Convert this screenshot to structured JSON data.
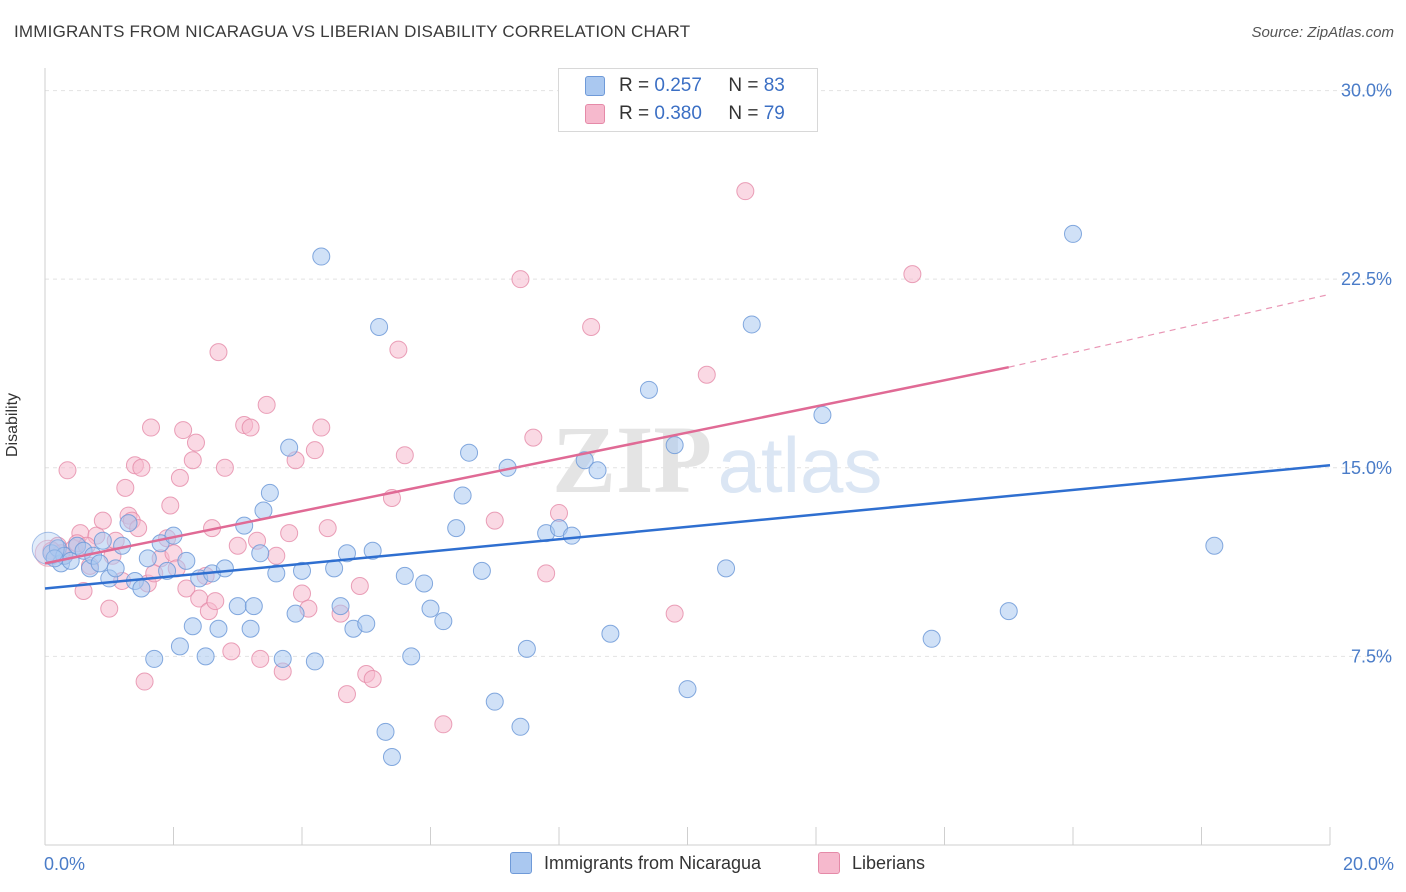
{
  "header": {
    "title": "IMMIGRANTS FROM NICARAGUA VS LIBERIAN DISABILITY CORRELATION CHART",
    "source": "Source: ZipAtlas.com"
  },
  "watermark": {
    "zip": "ZIP",
    "atlas": "atlas"
  },
  "legend": {
    "rows": [
      {
        "r_label": "R =",
        "r_value": "0.257",
        "n_label": "N =",
        "n_value": "83",
        "color": "#aac8f0"
      },
      {
        "r_label": "R =",
        "r_value": "0.380",
        "n_label": "N =",
        "n_value": "79",
        "color": "#f6b9cd"
      }
    ]
  },
  "bottom_legend": {
    "items": [
      {
        "label": "Immigrants from Nicaragua",
        "color": "#aac8f0"
      },
      {
        "label": "Liberians",
        "color": "#f6b9cd"
      }
    ]
  },
  "chart_data": {
    "type": "scatter",
    "title": "IMMIGRANTS FROM NICARAGUA VS LIBERIAN DISABILITY CORRELATION CHART",
    "xlabel": "",
    "ylabel": "Disability",
    "xlim": [
      0,
      20
    ],
    "ylim": [
      0,
      30.5
    ],
    "x_tick_labels": [
      "0.0%",
      "20.0%"
    ],
    "y_ticks": [
      7.5,
      15.0,
      22.5,
      30.0
    ],
    "y_tick_labels": [
      "7.5%",
      "15.0%",
      "22.5%",
      "30.0%"
    ],
    "grid": true,
    "legend_position": "top-center",
    "colors": {
      "blue_fill": "#aac8f0",
      "blue_stroke": "#6f9ad8",
      "blue_line": "#2f6fd0",
      "pink_fill": "#f6b9cd",
      "pink_stroke": "#e58aa8",
      "pink_line": "#e06a95",
      "tick_label": "#4a7cc8"
    },
    "series": [
      {
        "name": "Immigrants from Nicaragua",
        "trend": {
          "x0": 0,
          "y0": 10.2,
          "x1": 20,
          "y1": 15.1
        },
        "points": [
          [
            0.1,
            11.6
          ],
          [
            0.2,
            11.8
          ],
          [
            0.25,
            11.2
          ],
          [
            0.3,
            11.5
          ],
          [
            0.4,
            11.3
          ],
          [
            0.5,
            11.9
          ],
          [
            0.6,
            11.7
          ],
          [
            0.7,
            11.0
          ],
          [
            0.75,
            11.5
          ],
          [
            0.85,
            11.2
          ],
          [
            0.9,
            12.1
          ],
          [
            1.0,
            10.6
          ],
          [
            1.1,
            11.0
          ],
          [
            1.2,
            11.9
          ],
          [
            1.4,
            10.5
          ],
          [
            1.5,
            10.2
          ],
          [
            1.6,
            11.4
          ],
          [
            1.7,
            7.4
          ],
          [
            1.8,
            12.0
          ],
          [
            1.9,
            10.9
          ],
          [
            2.0,
            12.3
          ],
          [
            2.2,
            11.3
          ],
          [
            2.3,
            8.7
          ],
          [
            2.4,
            10.6
          ],
          [
            2.5,
            7.5
          ],
          [
            2.6,
            10.8
          ],
          [
            2.7,
            8.6
          ],
          [
            2.8,
            11.0
          ],
          [
            3.0,
            9.5
          ],
          [
            3.1,
            12.7
          ],
          [
            3.2,
            8.6
          ],
          [
            3.35,
            11.6
          ],
          [
            3.4,
            13.3
          ],
          [
            3.5,
            14.0
          ],
          [
            3.6,
            10.8
          ],
          [
            3.7,
            7.4
          ],
          [
            3.8,
            15.8
          ],
          [
            3.9,
            9.2
          ],
          [
            4.0,
            10.9
          ],
          [
            4.2,
            7.3
          ],
          [
            4.3,
            23.4
          ],
          [
            4.5,
            11.0
          ],
          [
            4.6,
            9.5
          ],
          [
            4.7,
            11.6
          ],
          [
            4.8,
            8.6
          ],
          [
            5.0,
            8.8
          ],
          [
            5.1,
            11.7
          ],
          [
            5.2,
            20.6
          ],
          [
            5.3,
            4.5
          ],
          [
            5.4,
            3.5
          ],
          [
            5.6,
            10.7
          ],
          [
            5.7,
            7.5
          ],
          [
            5.9,
            10.4
          ],
          [
            6.0,
            9.4
          ],
          [
            6.2,
            8.9
          ],
          [
            6.4,
            12.6
          ],
          [
            6.5,
            13.9
          ],
          [
            6.6,
            15.6
          ],
          [
            6.8,
            10.9
          ],
          [
            7.0,
            5.7
          ],
          [
            7.2,
            15.0
          ],
          [
            7.4,
            4.7
          ],
          [
            7.5,
            7.8
          ],
          [
            7.8,
            12.4
          ],
          [
            8.0,
            12.6
          ],
          [
            8.2,
            12.3
          ],
          [
            8.4,
            15.3
          ],
          [
            8.6,
            14.9
          ],
          [
            8.8,
            8.4
          ],
          [
            9.4,
            18.1
          ],
          [
            9.8,
            15.9
          ],
          [
            10.0,
            6.2
          ],
          [
            10.6,
            11.0
          ],
          [
            11.0,
            20.7
          ],
          [
            12.1,
            17.1
          ],
          [
            13.8,
            8.2
          ],
          [
            15.0,
            9.3
          ],
          [
            16.0,
            24.3
          ],
          [
            18.2,
            11.9
          ],
          [
            1.3,
            12.8
          ],
          [
            0.15,
            11.4
          ],
          [
            2.1,
            7.9
          ],
          [
            3.25,
            9.5
          ]
        ]
      },
      {
        "name": "Liberians",
        "trend": {
          "x0": 0,
          "y0": 11.2,
          "x1": 15.0,
          "y1": 19.0,
          "dash_to_x": 20,
          "dash_to_y": 21.9
        },
        "points": [
          [
            0.1,
            11.7
          ],
          [
            0.2,
            11.9
          ],
          [
            0.3,
            11.5
          ],
          [
            0.35,
            14.9
          ],
          [
            0.45,
            11.8
          ],
          [
            0.55,
            12.4
          ],
          [
            0.6,
            10.1
          ],
          [
            0.7,
            11.1
          ],
          [
            0.8,
            12.3
          ],
          [
            0.9,
            12.9
          ],
          [
            1.0,
            9.4
          ],
          [
            1.05,
            11.5
          ],
          [
            1.1,
            12.1
          ],
          [
            1.2,
            10.5
          ],
          [
            1.25,
            14.2
          ],
          [
            1.3,
            13.1
          ],
          [
            1.35,
            12.9
          ],
          [
            1.4,
            15.1
          ],
          [
            1.5,
            15.0
          ],
          [
            1.55,
            6.5
          ],
          [
            1.6,
            10.4
          ],
          [
            1.65,
            16.6
          ],
          [
            1.7,
            10.8
          ],
          [
            1.8,
            11.4
          ],
          [
            1.9,
            12.2
          ],
          [
            2.0,
            11.6
          ],
          [
            2.05,
            11.0
          ],
          [
            2.1,
            14.6
          ],
          [
            2.15,
            16.5
          ],
          [
            2.2,
            10.2
          ],
          [
            2.3,
            15.3
          ],
          [
            2.35,
            16.0
          ],
          [
            2.4,
            9.8
          ],
          [
            2.5,
            10.7
          ],
          [
            2.55,
            9.3
          ],
          [
            2.6,
            12.6
          ],
          [
            2.7,
            19.6
          ],
          [
            2.8,
            15.0
          ],
          [
            2.9,
            7.7
          ],
          [
            3.0,
            11.9
          ],
          [
            3.1,
            16.7
          ],
          [
            3.2,
            16.6
          ],
          [
            3.3,
            12.1
          ],
          [
            3.45,
            17.5
          ],
          [
            3.6,
            11.5
          ],
          [
            3.7,
            6.9
          ],
          [
            3.8,
            12.4
          ],
          [
            3.9,
            15.3
          ],
          [
            4.0,
            10.0
          ],
          [
            4.1,
            9.4
          ],
          [
            4.2,
            15.7
          ],
          [
            4.3,
            16.6
          ],
          [
            4.4,
            12.6
          ],
          [
            4.6,
            9.2
          ],
          [
            4.7,
            6.0
          ],
          [
            4.9,
            10.3
          ],
          [
            5.0,
            6.8
          ],
          [
            5.1,
            6.6
          ],
          [
            5.4,
            13.8
          ],
          [
            5.5,
            19.7
          ],
          [
            5.6,
            15.5
          ],
          [
            6.2,
            4.8
          ],
          [
            7.0,
            12.9
          ],
          [
            7.4,
            22.5
          ],
          [
            7.6,
            16.2
          ],
          [
            7.8,
            10.8
          ],
          [
            8.0,
            13.2
          ],
          [
            8.5,
            20.6
          ],
          [
            9.8,
            9.2
          ],
          [
            10.3,
            18.7
          ],
          [
            10.9,
            26.0
          ],
          [
            13.5,
            22.7
          ],
          [
            0.25,
            11.6
          ],
          [
            0.5,
            12.0
          ],
          [
            0.65,
            11.9
          ],
          [
            1.45,
            12.6
          ],
          [
            1.95,
            13.5
          ],
          [
            2.65,
            9.7
          ],
          [
            3.35,
            7.4
          ]
        ]
      }
    ]
  }
}
